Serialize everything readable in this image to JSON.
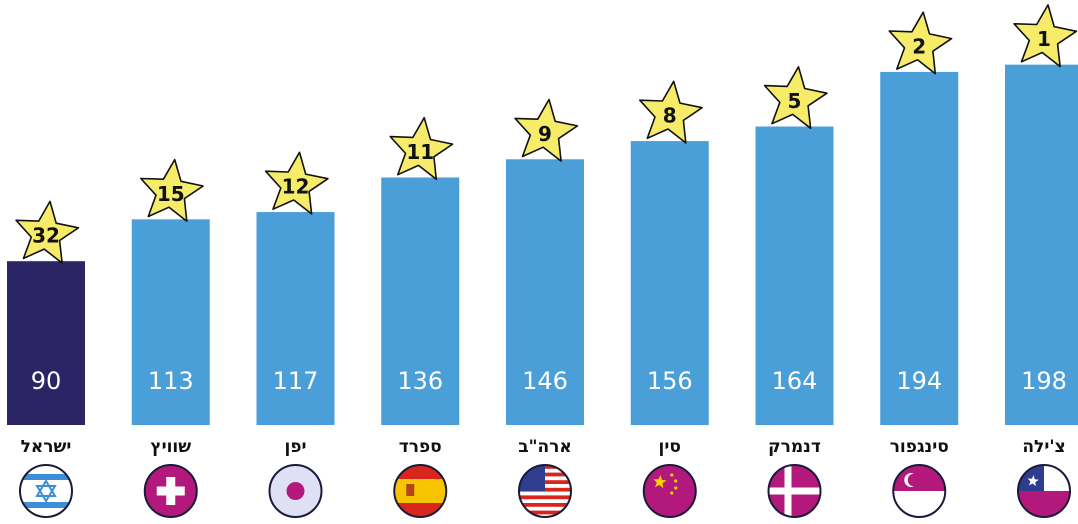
{
  "chart_data": {
    "type": "bar",
    "categories": [
      "ישראל",
      "שוויץ",
      "יפן",
      "ספרד",
      "ארה\"ב",
      "סין",
      "דנמרק",
      "סינגפור",
      "צ'ילה"
    ],
    "values": [
      90,
      113,
      117,
      136,
      146,
      156,
      164,
      194,
      198
    ],
    "ranks": [
      32,
      15,
      12,
      11,
      9,
      8,
      5,
      2,
      1
    ],
    "colors": [
      "#2b2566",
      "#4a9fd8",
      "#4a9fd8",
      "#4a9fd8",
      "#4a9fd8",
      "#4a9fd8",
      "#4a9fd8",
      "#4a9fd8",
      "#4a9fd8"
    ],
    "ylim": [
      0,
      200
    ]
  }
}
